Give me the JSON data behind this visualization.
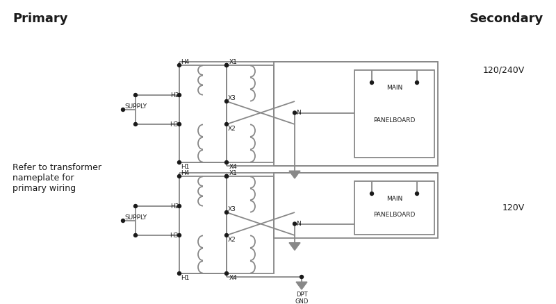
{
  "title_primary": "Primary",
  "title_secondary": "Secondary",
  "label_120_240": "120/240V",
  "label_120": "120V",
  "label_supply": "SUPPLY",
  "label_main": "MAIN",
  "label_panelboard": "PANELBOARD",
  "label_N": "N",
  "label_H1": "H1",
  "label_H2": "H2",
  "label_H3": "H3",
  "label_H4": "H4",
  "label_X1": "X1",
  "label_X2": "X2",
  "label_X3": "X3",
  "label_X4": "X4",
  "label_dpt_gnd": "DPT\nGND",
  "label_refer": "Refer to transformer\nnameplate for\nprimary wiring",
  "bg_color": "#ffffff",
  "line_color": "#888888",
  "text_color": "#1a1a1a",
  "dot_color": "#1a1a1a",
  "lw": 1.3,
  "fs": 6.5,
  "dot_r": 2.5
}
